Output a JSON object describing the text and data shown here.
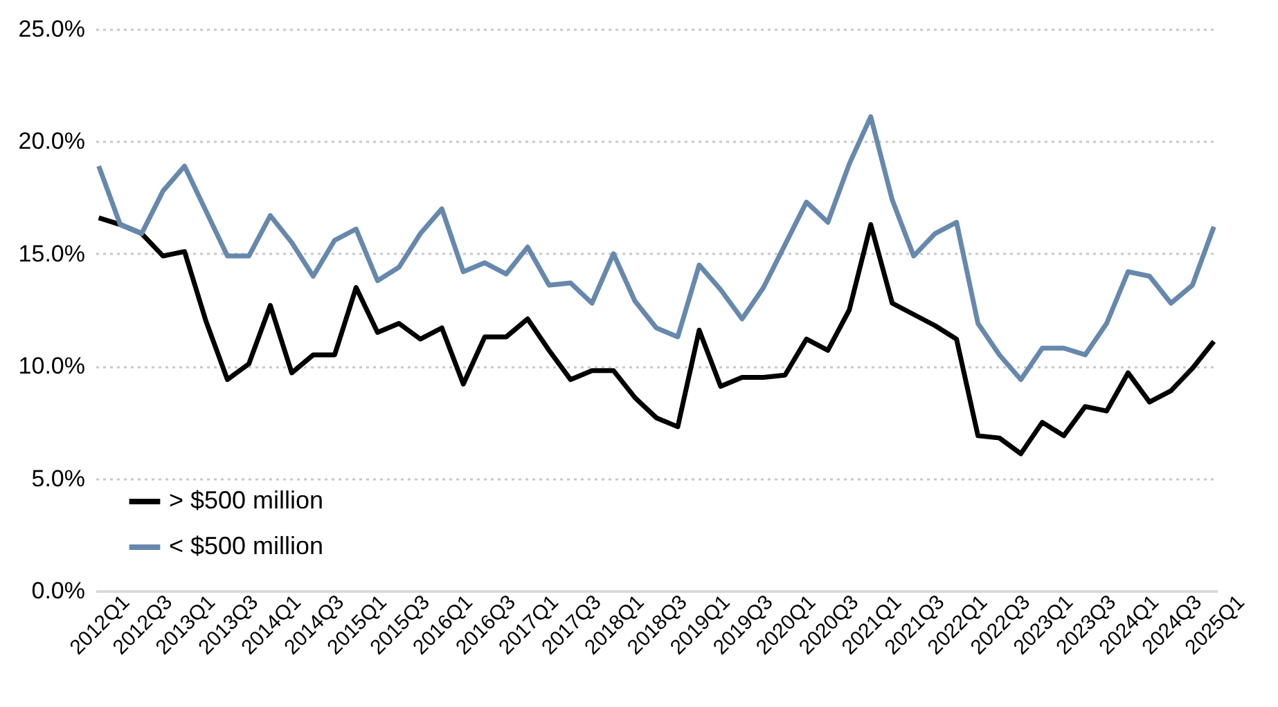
{
  "chart_data": {
    "type": "line",
    "categories": [
      "2012Q1",
      null,
      "2012Q3",
      null,
      "2013Q1",
      null,
      "2013Q3",
      null,
      "2014Q1",
      null,
      "2014Q3",
      null,
      "2015Q1",
      null,
      "2015Q3",
      null,
      "2016Q1",
      null,
      "2016Q3",
      null,
      "2017Q1",
      null,
      "2017Q3",
      null,
      "2018Q1",
      null,
      "2018Q3",
      null,
      "2019Q1",
      null,
      "2019Q3",
      null,
      "2020Q1",
      null,
      "2020Q3",
      null,
      "2021Q1",
      null,
      "2021Q3",
      null,
      "2022Q1",
      null,
      "2022Q3",
      null,
      "2023Q1",
      null,
      "2023Q3",
      null,
      "2024Q1",
      null,
      "2024Q3",
      null,
      "2025Q1"
    ],
    "series": [
      {
        "name": "> $500 million",
        "color": "#000000",
        "values": [
          16.6,
          16.3,
          15.9,
          14.9,
          15.1,
          12.0,
          9.4,
          10.1,
          12.7,
          9.7,
          10.5,
          10.5,
          13.5,
          11.5,
          11.9,
          11.2,
          11.7,
          9.2,
          11.3,
          11.3,
          12.1,
          10.7,
          9.4,
          9.8,
          9.8,
          8.6,
          7.7,
          7.3,
          11.6,
          9.1,
          9.5,
          9.5,
          9.6,
          11.2,
          10.7,
          12.5,
          16.3,
          12.8,
          12.3,
          11.8,
          11.2,
          6.9,
          6.8,
          6.1,
          7.5,
          6.9,
          8.2,
          8.0,
          9.7,
          8.4,
          8.9,
          9.9,
          11.1
        ]
      },
      {
        "name": "< $500 million",
        "color": "#6788ad",
        "values": [
          18.9,
          16.3,
          15.9,
          17.8,
          18.9,
          16.9,
          14.9,
          14.9,
          16.7,
          15.5,
          14.0,
          15.6,
          16.1,
          13.8,
          14.4,
          15.9,
          17.0,
          14.2,
          14.6,
          14.1,
          15.3,
          13.6,
          13.7,
          12.8,
          15.0,
          12.9,
          11.7,
          11.3,
          14.5,
          13.4,
          12.1,
          13.5,
          15.4,
          17.3,
          16.4,
          19.0,
          21.1,
          17.4,
          14.9,
          15.9,
          16.4,
          11.9,
          10.5,
          9.4,
          10.8,
          10.8,
          10.5,
          11.9,
          14.2,
          14.0,
          12.8,
          13.6,
          16.2
        ]
      }
    ],
    "ylim": [
      0,
      25
    ],
    "yticks": [
      {
        "value": 0,
        "label": "0.0%"
      },
      {
        "value": 5,
        "label": "5.0%"
      },
      {
        "value": 10,
        "label": "10.0%"
      },
      {
        "value": 15,
        "label": "15.0%"
      },
      {
        "value": 20,
        "label": "20.0%"
      },
      {
        "value": 25,
        "label": "25.0%"
      }
    ],
    "grid": "y",
    "legend": "bottom left",
    "line_style": "solid"
  }
}
